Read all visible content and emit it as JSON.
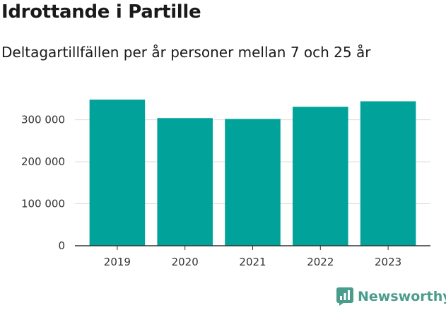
{
  "title": "Idrottande i Partille",
  "subtitle": "Deltagartillfällen per år personer mellan 7 och 25 år",
  "brand": {
    "name": "Newsworthy",
    "color": "#4a9c8c"
  },
  "colors": {
    "bar": "#00a29a",
    "grid": "#d9d9d9",
    "axis": "#333333"
  },
  "chart_data": {
    "type": "bar",
    "categories": [
      "2019",
      "2020",
      "2021",
      "2022",
      "2023"
    ],
    "values": [
      348000,
      304000,
      302000,
      331000,
      344000
    ],
    "yticks": [
      0,
      100000,
      200000,
      300000
    ],
    "ytick_labels": [
      "0",
      "100 000",
      "200 000",
      "300 000"
    ],
    "ylim": [
      0,
      370000
    ],
    "grid": true,
    "xlabel": "",
    "ylabel": ""
  }
}
